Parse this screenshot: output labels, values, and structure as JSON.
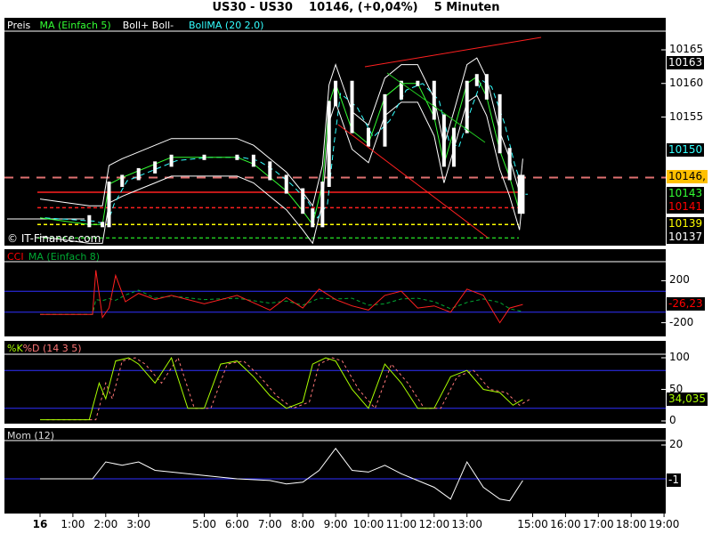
{
  "title": "US30 - US30    10146, (+0,04%)    5 Minuten",
  "watermark": "© IT-Finance.com",
  "main": {
    "legend": [
      {
        "text": "Preis",
        "color": "#ffffff"
      },
      {
        "text": "MA (Einfach 5)",
        "color": "#33ff33"
      },
      {
        "text": "Boll+ Boll-",
        "color": "#ffffff"
      },
      {
        "text": "BollMA (20 2.0)",
        "color": "#33ffff"
      }
    ],
    "yticks": [
      "10165",
      "10160",
      "10155"
    ],
    "value_labels": [
      {
        "text": "10163",
        "color": "#ffffff",
        "bg": "#000000"
      },
      {
        "text": "10150",
        "color": "#33ffff",
        "bg": "#000000"
      },
      {
        "text": "10146,",
        "color": "#000000",
        "bg": "#ffc000"
      },
      {
        "text": "10143",
        "color": "#33ff33",
        "bg": "#000000"
      },
      {
        "text": "10141",
        "color": "#ff0000",
        "bg": "#000000"
      },
      {
        "text": "10139",
        "color": "#ffff00",
        "bg": "#000000"
      },
      {
        "text": "10137",
        "color": "#ffffff",
        "bg": "#000000"
      }
    ]
  },
  "cci": {
    "legend": [
      {
        "text": "CCI",
        "color": "#ff0000"
      },
      {
        "text": "MA (Einfach 8)",
        "color": "#00aa33"
      }
    ],
    "yticks": [
      "200",
      "-200"
    ],
    "value_labels": [
      {
        "text": "-26,23",
        "color": "#ff0000"
      }
    ]
  },
  "stoch": {
    "legend": [
      {
        "text": "%K",
        "color": "#aaff00"
      },
      {
        "text": "%D (14 3 5)",
        "color": "#ff7777"
      }
    ],
    "yticks": [
      "100",
      "50",
      "0"
    ],
    "value_labels": [
      {
        "text": "34,035",
        "color": "#aaff00"
      }
    ]
  },
  "mom": {
    "legend": [
      {
        "text": "Mom (12)",
        "color": "#dddddd"
      }
    ],
    "yticks": [
      "20"
    ],
    "value_labels": [
      {
        "text": "-1",
        "color": "#ffffff"
      }
    ]
  },
  "xaxis": [
    "16",
    "1:00",
    "2:00",
    "3:00",
    "5:00",
    "6:00",
    "7:00",
    "8:00",
    "9:00",
    "10:00",
    "11:00",
    "12:00",
    "13:00",
    "15:00",
    "16:00",
    "17:00",
    "18:00",
    "19:00"
  ],
  "chart_data": {
    "type": "line",
    "x_unit": "hours",
    "ylim": [
      10136,
      10168
    ],
    "price": {
      "x": [
        0,
        1.5,
        1.9,
        2.1,
        2.5,
        3,
        3.5,
        4,
        5,
        6,
        6.5,
        7,
        7.5,
        8,
        8.3,
        8.6,
        8.8,
        9,
        9.5,
        10,
        10.5,
        11,
        11.5,
        12,
        12.3,
        12.6,
        13,
        13.3,
        13.6,
        14,
        14.3,
        14.6,
        14.7
      ],
      "y": [
        10140,
        10139,
        10139,
        10145,
        10146,
        10147,
        10148,
        10149,
        10149,
        10149,
        10148,
        10146,
        10144,
        10141,
        10139,
        10145,
        10157,
        10160,
        10153,
        10151,
        10158,
        10160,
        10160,
        10155,
        10148,
        10153,
        10160,
        10161,
        10158,
        10150,
        10146,
        10141,
        10146
      ]
    },
    "levels": [
      10146,
      10143.8,
      10141.5,
      10139,
      10137
    ],
    "cci": {
      "x": [
        0,
        1.6,
        1.7,
        1.9,
        2.1,
        2.3,
        2.6,
        3,
        3.5,
        4,
        5,
        6,
        7,
        7.5,
        8,
        8.5,
        9,
        9.5,
        10,
        10.5,
        11,
        11.5,
        12,
        12.5,
        13,
        13.5,
        14,
        14.3,
        14.7
      ],
      "y": [
        -120,
        -120,
        300,
        -150,
        -60,
        250,
        0,
        80,
        20,
        60,
        -20,
        60,
        -80,
        40,
        -60,
        120,
        20,
        -40,
        -80,
        60,
        100,
        -60,
        -40,
        -100,
        120,
        60,
        -200,
        -60,
        -26
      ]
    },
    "stoch_k": {
      "x": [
        0,
        1.5,
        1.8,
        2,
        2.3,
        2.7,
        3,
        3.5,
        4,
        4.5,
        5,
        5.5,
        6,
        6.5,
        7,
        7.5,
        8,
        8.3,
        8.7,
        9,
        9.5,
        10,
        10.5,
        11,
        11.5,
        12,
        12.5,
        13,
        13.5,
        14,
        14.4,
        14.7
      ],
      "y": [
        2,
        2,
        60,
        35,
        95,
        100,
        90,
        60,
        100,
        20,
        20,
        90,
        95,
        70,
        40,
        20,
        30,
        90,
        100,
        95,
        50,
        20,
        90,
        60,
        20,
        20,
        70,
        80,
        50,
        45,
        25,
        34
      ]
    },
    "mom": {
      "x": [
        0,
        1.6,
        2,
        2.5,
        3,
        3.5,
        4,
        5,
        6,
        7,
        7.5,
        8,
        8.5,
        9,
        9.5,
        10,
        10.5,
        11,
        12,
        12.5,
        13,
        13.5,
        14,
        14.3,
        14.7
      ],
      "y": [
        0,
        0,
        10,
        8,
        10,
        5,
        4,
        2,
        0,
        -1,
        -3,
        -2,
        5,
        18,
        5,
        4,
        8,
        3,
        -5,
        -12,
        10,
        -5,
        -12,
        -13,
        -1
      ]
    }
  }
}
